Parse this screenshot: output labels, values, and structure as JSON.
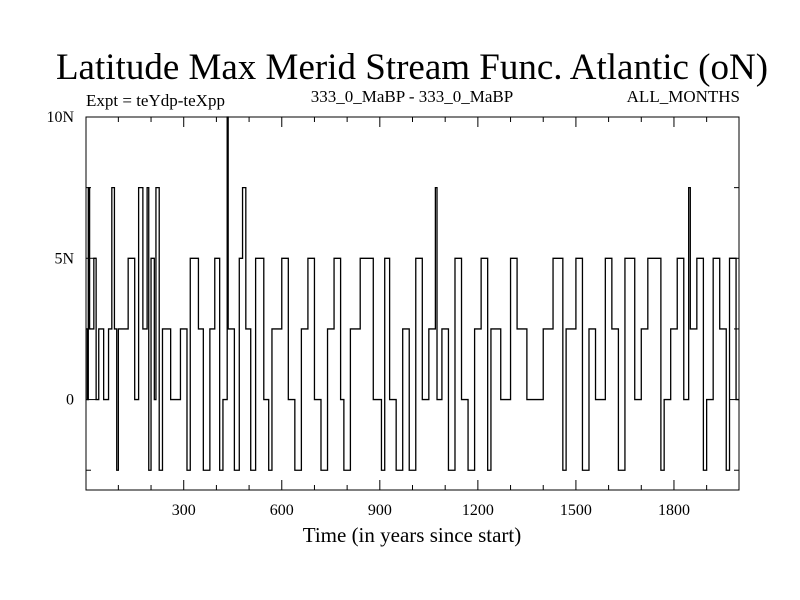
{
  "chart_data": {
    "type": "line",
    "title": "Latitude Max Merid Stream Func. Atlantic (oN)",
    "subtitle_left": "Expt = teYdp-teXpp",
    "subtitle_center": "333_0_MaBP - 333_0_MaBP",
    "subtitle_right": "ALL_MONTHS",
    "xlabel": "Time (in years since start)",
    "ylabel": "",
    "xlim": [
      1,
      1999
    ],
    "ylim": [
      -3.2,
      10
    ],
    "xticks": [
      300,
      600,
      900,
      1200,
      1500,
      1800
    ],
    "xtick_labels": [
      "300",
      "600",
      "900",
      "1200",
      "1500",
      "1800"
    ],
    "yticks": [
      0,
      5,
      10
    ],
    "ytick_labels": [
      "0",
      "5N",
      "10N"
    ],
    "grid": false,
    "levels": [
      -2.5,
      0,
      2.5,
      5,
      7.5,
      10
    ],
    "series": [
      {
        "style": "stepped line, values quantised to -2.5, 0, 2.5, 5, 7.5, 10 degrees N",
        "color": "#000000",
        "points": [
          [
            1,
            2.5
          ],
          [
            5,
            0
          ],
          [
            8,
            7.5
          ],
          [
            12,
            2.5
          ],
          [
            25,
            5
          ],
          [
            32,
            0
          ],
          [
            40,
            2.5
          ],
          [
            55,
            0
          ],
          [
            70,
            2.5
          ],
          [
            80,
            7.5
          ],
          [
            88,
            2.5
          ],
          [
            95,
            -2.5
          ],
          [
            100,
            2.5
          ],
          [
            130,
            5
          ],
          [
            150,
            0
          ],
          [
            162,
            7.5
          ],
          [
            175,
            2.5
          ],
          [
            188,
            7.5
          ],
          [
            193,
            -2.5
          ],
          [
            200,
            5
          ],
          [
            210,
            0
          ],
          [
            215,
            7.5
          ],
          [
            225,
            -2.5
          ],
          [
            235,
            2.5
          ],
          [
            260,
            0
          ],
          [
            290,
            2.5
          ],
          [
            310,
            -2.5
          ],
          [
            320,
            5
          ],
          [
            345,
            2.5
          ],
          [
            360,
            -2.5
          ],
          [
            380,
            2.5
          ],
          [
            395,
            5
          ],
          [
            410,
            -2.5
          ],
          [
            420,
            0
          ],
          [
            433,
            10
          ],
          [
            436,
            2.5
          ],
          [
            455,
            -2.5
          ],
          [
            470,
            5
          ],
          [
            480,
            7.5
          ],
          [
            490,
            2.5
          ],
          [
            505,
            -2.5
          ],
          [
            520,
            5
          ],
          [
            545,
            0
          ],
          [
            560,
            -2.5
          ],
          [
            570,
            2.5
          ],
          [
            600,
            5
          ],
          [
            620,
            0
          ],
          [
            640,
            -2.5
          ],
          [
            660,
            2.5
          ],
          [
            680,
            5
          ],
          [
            700,
            0
          ],
          [
            720,
            -2.5
          ],
          [
            740,
            2.5
          ],
          [
            760,
            5
          ],
          [
            780,
            0
          ],
          [
            790,
            -2.5
          ],
          [
            810,
            2.5
          ],
          [
            840,
            5
          ],
          [
            880,
            0
          ],
          [
            905,
            -2.5
          ],
          [
            915,
            5
          ],
          [
            930,
            0
          ],
          [
            950,
            -2.5
          ],
          [
            970,
            2.5
          ],
          [
            990,
            -2.5
          ],
          [
            1010,
            5
          ],
          [
            1030,
            0
          ],
          [
            1050,
            2.5
          ],
          [
            1070,
            7.5
          ],
          [
            1075,
            0
          ],
          [
            1090,
            2.5
          ],
          [
            1110,
            -2.5
          ],
          [
            1130,
            5
          ],
          [
            1150,
            0
          ],
          [
            1170,
            -2.5
          ],
          [
            1190,
            2.5
          ],
          [
            1210,
            5
          ],
          [
            1230,
            -2.5
          ],
          [
            1240,
            2.5
          ],
          [
            1270,
            0
          ],
          [
            1300,
            5
          ],
          [
            1320,
            2.5
          ],
          [
            1350,
            0
          ],
          [
            1400,
            2.5
          ],
          [
            1430,
            5
          ],
          [
            1460,
            -2.5
          ],
          [
            1470,
            2.5
          ],
          [
            1500,
            5
          ],
          [
            1520,
            -2.5
          ],
          [
            1540,
            2.5
          ],
          [
            1560,
            0
          ],
          [
            1590,
            5
          ],
          [
            1610,
            2.5
          ],
          [
            1630,
            -2.5
          ],
          [
            1650,
            5
          ],
          [
            1680,
            0
          ],
          [
            1700,
            2.5
          ],
          [
            1720,
            5
          ],
          [
            1760,
            -2.5
          ],
          [
            1770,
            0
          ],
          [
            1790,
            2.5
          ],
          [
            1810,
            5
          ],
          [
            1830,
            0
          ],
          [
            1845,
            7.5
          ],
          [
            1850,
            2.5
          ],
          [
            1870,
            5
          ],
          [
            1890,
            -2.5
          ],
          [
            1900,
            0
          ],
          [
            1920,
            5
          ],
          [
            1940,
            2.5
          ],
          [
            1960,
            -2.5
          ],
          [
            1970,
            5
          ],
          [
            1990,
            0
          ]
        ]
      }
    ]
  }
}
